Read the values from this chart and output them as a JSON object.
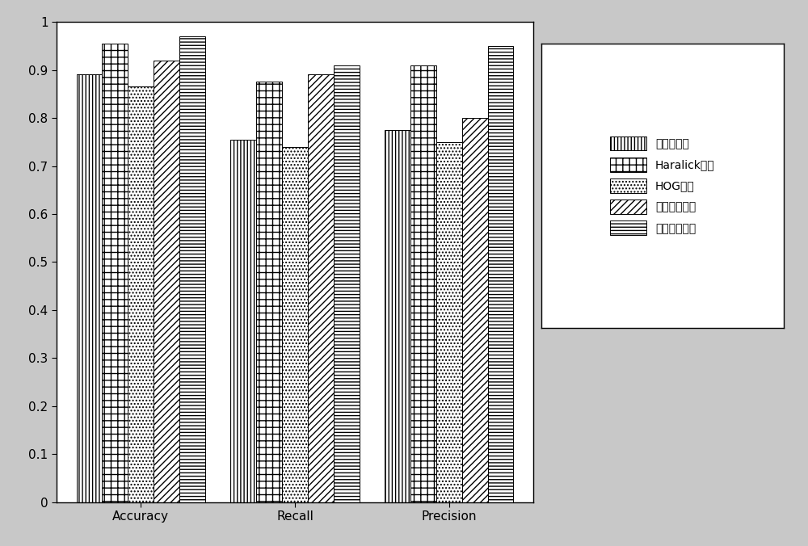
{
  "categories": [
    "Accuracy",
    "Recall",
    "Precision"
  ],
  "series": [
    {
      "label": "灰度直方图",
      "values": [
        0.89,
        0.755,
        0.775
      ],
      "hatch": "||||"
    },
    {
      "label": "Haralick纹理",
      "values": [
        0.955,
        0.875,
        0.91
      ],
      "hatch": "++"
    },
    {
      "label": "HOG特征",
      "values": [
        0.865,
        0.74,
        0.75
      ],
      "hatch": "...."
    },
    {
      "label": "先分类再融合",
      "values": [
        0.92,
        0.89,
        0.8
      ],
      "hatch": "////"
    },
    {
      "label": "先融合再分类",
      "values": [
        0.97,
        0.91,
        0.95
      ],
      "hatch": "----"
    }
  ],
  "ylim": [
    0,
    1.0
  ],
  "yticks": [
    0,
    0.1,
    0.2,
    0.3,
    0.4,
    0.5,
    0.6,
    0.7,
    0.8,
    0.9,
    1
  ],
  "bar_width": 0.055,
  "group_centers": [
    0.21,
    0.54,
    0.87
  ],
  "background_color": "#c8c8c8",
  "plot_bg_color": "#ffffff",
  "legend_fontsize": 10,
  "tick_fontsize": 11,
  "figsize": [
    10.0,
    6.76
  ],
  "dpi": 100
}
